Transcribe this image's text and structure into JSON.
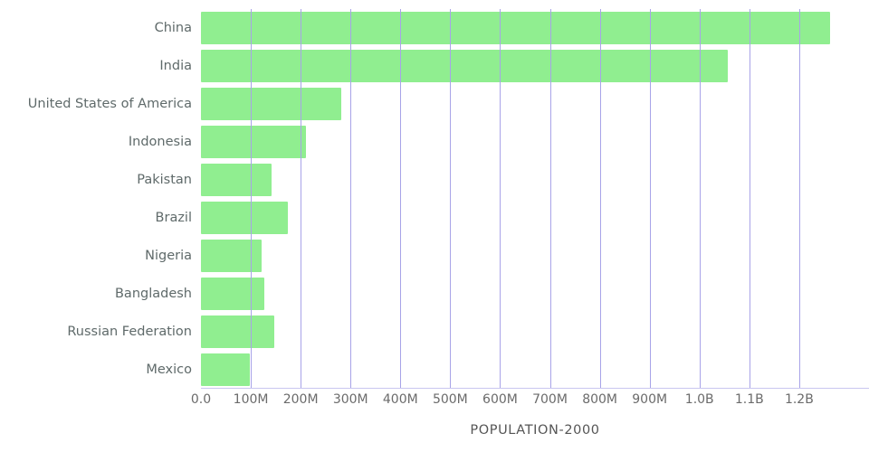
{
  "chart_data": {
    "type": "bar",
    "orientation": "horizontal",
    "title": "",
    "xlabel": "POPULATION-2000",
    "ylabel": "",
    "categories": [
      "China",
      "India",
      "United States of America",
      "Indonesia",
      "Pakistan",
      "Brazil",
      "Nigeria",
      "Bangladesh",
      "Russian Federation",
      "Mexico"
    ],
    "values_millions": [
      1262.6,
      1056.6,
      282.2,
      211.5,
      142.3,
      174.8,
      122.3,
      127.7,
      146.6,
      98.9
    ],
    "x_ticks": [
      {
        "value": 0,
        "label": "0.0"
      },
      {
        "value": 100,
        "label": "100M"
      },
      {
        "value": 200,
        "label": "200M"
      },
      {
        "value": 300,
        "label": "300M"
      },
      {
        "value": 400,
        "label": "400M"
      },
      {
        "value": 500,
        "label": "500M"
      },
      {
        "value": 600,
        "label": "600M"
      },
      {
        "value": 700,
        "label": "700M"
      },
      {
        "value": 800,
        "label": "800M"
      },
      {
        "value": 900,
        "label": "900M"
      },
      {
        "value": 1000,
        "label": "1.0B"
      },
      {
        "value": 1100,
        "label": "1.1B"
      },
      {
        "value": 1200,
        "label": "1.2B"
      }
    ],
    "xlim_millions": [
      0,
      1340
    ],
    "grid": true,
    "legend": false,
    "colors": {
      "bar": "#90ee90",
      "gridline": "#a8a3e8",
      "axis_line": "#c9c6f0",
      "tick_text": "#6b6b6b",
      "label_text": "#5f6a6a",
      "axis_title_text": "#555555"
    }
  }
}
